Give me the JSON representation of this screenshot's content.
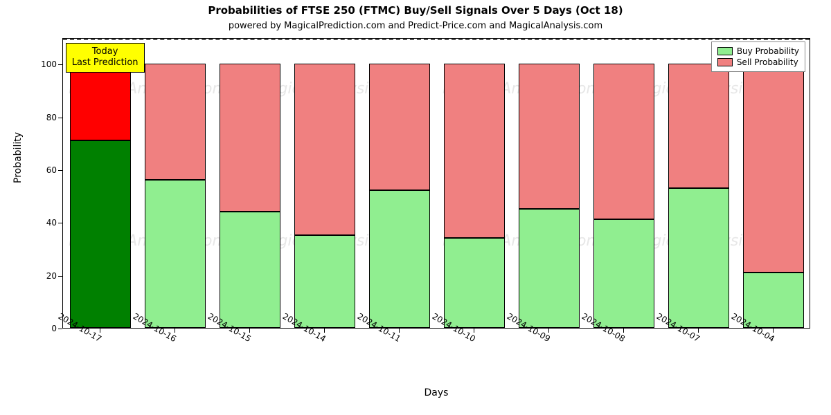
{
  "chart": {
    "type": "stacked-bar",
    "title": "Probabilities of FTSE 250 (FTMC) Buy/Sell Signals Over 5 Days (Oct 18)",
    "title_fontsize": 15,
    "title_weight": "bold",
    "subtitle": "powered by MagicalPrediction.com and Predict-Price.com and MagicalAnalysis.com",
    "subtitle_fontsize": 13,
    "background_color": "#ffffff",
    "border_color": "#000000",
    "xlabel": "Days",
    "ylabel": "Probability",
    "label_fontsize": 14,
    "tick_fontsize": 12,
    "ylim": [
      0,
      110
    ],
    "yticks": [
      0,
      20,
      40,
      60,
      80,
      100
    ],
    "x_tick_rotation_deg": 30,
    "bar_total_height": 100,
    "reference_line": {
      "y": 110,
      "style": "dashed",
      "color": "#555555"
    },
    "categories": [
      "2024-10-17",
      "2024-10-16",
      "2024-10-15",
      "2024-10-14",
      "2024-10-11",
      "2024-10-10",
      "2024-10-09",
      "2024-10-08",
      "2024-10-07",
      "2024-10-04"
    ],
    "buy_values": [
      71,
      56,
      44,
      35,
      52,
      34,
      45,
      41,
      53,
      21
    ],
    "sell_values": [
      29,
      44,
      56,
      65,
      48,
      66,
      55,
      59,
      47,
      79
    ],
    "bar_width_ratio": 0.82,
    "buy_colors": [
      "#008000",
      "#90ee90",
      "#90ee90",
      "#90ee90",
      "#90ee90",
      "#90ee90",
      "#90ee90",
      "#90ee90",
      "#90ee90",
      "#90ee90"
    ],
    "sell_colors": [
      "#ff0000",
      "#f08080",
      "#f08080",
      "#f08080",
      "#f08080",
      "#f08080",
      "#f08080",
      "#f08080",
      "#f08080",
      "#f08080"
    ],
    "bar_border_color": "#000000",
    "annotation": {
      "line1": "Today",
      "line2": "Last Prediction",
      "bg_color": "#ffff00",
      "border_color": "#000000",
      "fontsize": 13,
      "target_category_index": 0
    },
    "legend": {
      "position": "top-right",
      "items": [
        {
          "label": "Buy Probability",
          "color": "#90ee90"
        },
        {
          "label": "Sell Probability",
          "color": "#f08080"
        }
      ],
      "fontsize": 12,
      "border_color": "#888888",
      "bg_color": "#ffffff"
    },
    "watermark": {
      "text": "MagicalAnalysis.com",
      "color": "rgba(120,120,120,0.18)",
      "fontsize": 22,
      "style": "italic",
      "rows": 2,
      "cols": 4
    }
  }
}
